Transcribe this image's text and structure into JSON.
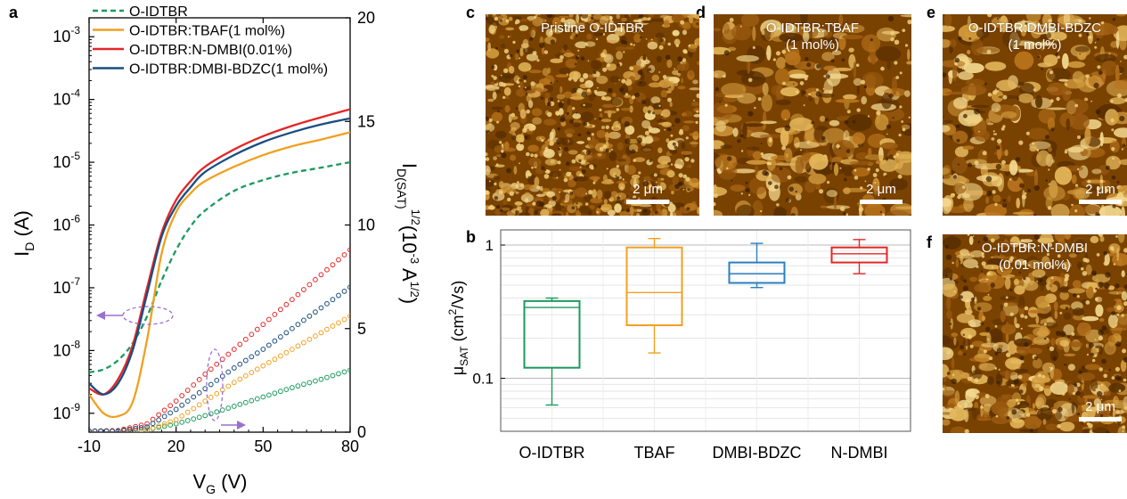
{
  "panel_letters": {
    "a": "a",
    "b": "b",
    "c": "c",
    "d": "d",
    "e": "e",
    "f": "f"
  },
  "colors": {
    "O-IDTBR": "#1a9a5e",
    "TBAF": "#f0a020",
    "N-DMBI": "#e32626",
    "DMBI-BDZC": "#1a4d80",
    "DMBI-BDZC_box": "#2a7fc0",
    "marker_ellipse": "#9b6fd0",
    "afm_base": "#7a4200",
    "afm_light": "#f0cf7a"
  },
  "chart_data": [
    {
      "id": "a",
      "type": "line",
      "xlabel": "V",
      "xlabel_sub": "G",
      "xlabel_unit": " (V)",
      "ylabel_left": "I",
      "ylabel_left_sub": "D",
      "ylabel_left_unit": " (A)",
      "ylabel_right": "I",
      "ylabel_right_sub": "D(SAT)",
      "ylabel_right_sup": "1/2",
      "ylabel_right_unit": "(10",
      "ylabel_right_unit_sup": "-3",
      "ylabel_right_unit2": " A",
      "ylabel_right_unit2_sup": "1/2",
      "ylabel_right_end": ")",
      "xlim": [
        -10,
        80
      ],
      "ylim_left_log": [
        5e-10,
        0.002
      ],
      "ylim_right": [
        0,
        20
      ],
      "xticks": [
        "-10",
        "20",
        "50",
        "80"
      ],
      "xtick_values": [
        -10,
        20,
        50,
        80
      ],
      "yticks_left_base": "10",
      "yticks_left_exp": [
        "-9",
        "-8",
        "-7",
        "-6",
        "-5",
        "-4",
        "-3"
      ],
      "yticks_right": [
        "0",
        "5",
        "10",
        "15",
        "20"
      ],
      "legend_position": "top-left",
      "series": [
        {
          "name": "O-IDTBR",
          "style": "dashed",
          "x": [
            -10,
            -5,
            0,
            5,
            10,
            15,
            20,
            25,
            30,
            40,
            50,
            60,
            70,
            80
          ],
          "ID": [
            4.5e-09,
            5e-09,
            7e-09,
            1.3e-08,
            3.5e-08,
            1.3e-07,
            4e-07,
            9.5e-07,
            1.7e-06,
            3.5e-06,
            5.2e-06,
            6.8e-06,
            8.2e-06,
            1e-05
          ],
          "sqrtID_x": [
            -10,
            0,
            10,
            20,
            30,
            40,
            50,
            60,
            70,
            80
          ],
          "sqrtID": [
            0.05,
            0.05,
            0.12,
            0.4,
            0.8,
            1.25,
            1.7,
            2.15,
            2.55,
            3.0
          ]
        },
        {
          "name": "O-IDTBR:TBAF(1 mol%)",
          "style": "solid",
          "x": [
            -10,
            -5,
            0,
            5,
            10,
            15,
            20,
            25,
            30,
            40,
            50,
            60,
            70,
            80
          ],
          "ID": [
            2e-09,
            1e-09,
            9e-10,
            1.5e-09,
            1.5e-08,
            3.5e-07,
            1.6e-06,
            3.2e-06,
            5e-06,
            8.5e-06,
            1.3e-05,
            1.8e-05,
            2.3e-05,
            3e-05
          ],
          "sqrtID_x": [
            -10,
            0,
            10,
            20,
            30,
            40,
            50,
            60,
            70,
            80
          ],
          "sqrtID": [
            0.05,
            0.05,
            0.1,
            0.6,
            1.5,
            2.4,
            3.2,
            4.0,
            4.8,
            5.6
          ]
        },
        {
          "name": "O-IDTBR:N-DMBI(0.01%)",
          "style": "solid",
          "x": [
            -10,
            -5,
            0,
            5,
            10,
            15,
            20,
            25,
            30,
            40,
            50,
            60,
            70,
            80
          ],
          "ID": [
            2.5e-09,
            2e-09,
            3.5e-09,
            1.2e-08,
            1e-07,
            7.5e-07,
            2.5e-06,
            5e-06,
            8.5e-06,
            1.6e-05,
            2.6e-05,
            3.8e-05,
            5.2e-05,
            7e-05
          ],
          "sqrtID_x": [
            -10,
            0,
            10,
            20,
            30,
            40,
            50,
            60,
            70,
            80
          ],
          "sqrtID": [
            0.05,
            0.08,
            0.4,
            1.5,
            2.8,
            4.0,
            5.2,
            6.4,
            7.6,
            8.8
          ]
        },
        {
          "name": "O-IDTBR:DMBI-BDZC(1 mol%)",
          "style": "solid",
          "x": [
            -10,
            -5,
            0,
            5,
            10,
            15,
            20,
            25,
            30,
            40,
            50,
            60,
            70,
            80
          ],
          "ID": [
            3e-09,
            2e-09,
            3e-09,
            1e-08,
            8e-08,
            6.5e-07,
            2e-06,
            4e-06,
            7e-06,
            1.3e-05,
            2.1e-05,
            3e-05,
            4e-05,
            5e-05
          ],
          "sqrtID_x": [
            -10,
            0,
            10,
            20,
            30,
            40,
            50,
            60,
            70,
            80
          ],
          "sqrtID": [
            0.05,
            0.06,
            0.25,
            1.1,
            2.1,
            3.1,
            4.0,
            5.0,
            6.0,
            7.0
          ]
        }
      ]
    },
    {
      "id": "b",
      "type": "box",
      "ylabel": "μ",
      "ylabel_sub": "SAT",
      "ylabel_unit": " (cm",
      "ylabel_unit_sup": "2",
      "ylabel_unit_end": "/Vs)",
      "yscale": "log",
      "ylim": [
        0.04,
        1.3
      ],
      "yticks": [
        "0.1",
        "1"
      ],
      "ytick_values": [
        0.1,
        1
      ],
      "grid": true,
      "categories": [
        "O-IDTBR",
        "TBAF",
        "DMBI-BDZC",
        "N-DMBI"
      ],
      "boxes": [
        {
          "min": 0.063,
          "q1": 0.12,
          "median": 0.34,
          "q3": 0.38,
          "max": 0.4
        },
        {
          "min": 0.155,
          "q1": 0.25,
          "median": 0.44,
          "q3": 0.96,
          "max": 1.12
        },
        {
          "min": 0.48,
          "q1": 0.52,
          "median": 0.61,
          "q3": 0.74,
          "max": 1.03
        },
        {
          "min": 0.61,
          "q1": 0.74,
          "median": 0.86,
          "q3": 0.96,
          "max": 1.1
        }
      ]
    }
  ],
  "afm": {
    "c": {
      "title1": "Pristine O-IDTBR",
      "title2": "",
      "scale": "2 μm"
    },
    "d": {
      "title1": "O-IDTBR:TBAF",
      "title2": "(1 mol%)",
      "scale": "2 μm"
    },
    "e": {
      "title1": "O-IDTBR:DMBI-BDZC",
      "title2": "(1 mol%)",
      "scale": "2 μm"
    },
    "f": {
      "title1": "O-IDTBR:N-DMBI",
      "title2": "(0.01 mol%)",
      "scale": "2 μm"
    }
  }
}
